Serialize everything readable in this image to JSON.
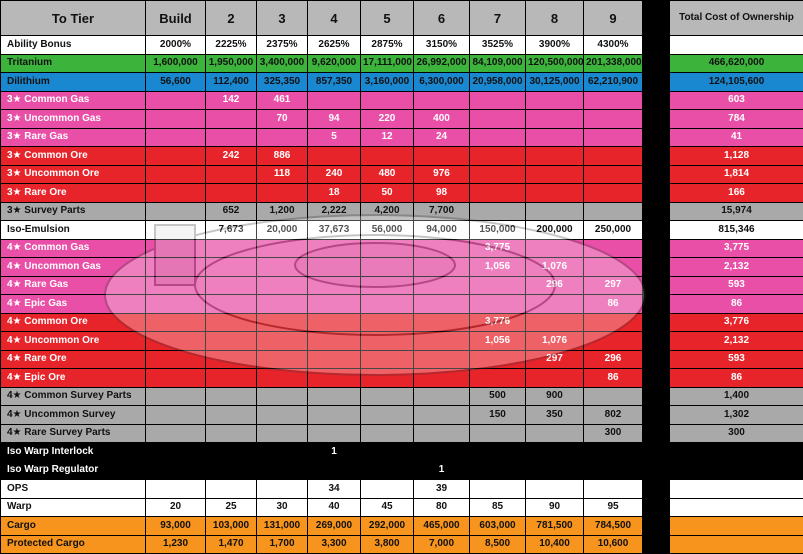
{
  "columns": [
    "To Tier",
    "Build",
    "2",
    "3",
    "4",
    "5",
    "6",
    "7",
    "8",
    "9",
    "",
    "Total Cost of Ownership"
  ],
  "rows": [
    {
      "color": "white",
      "cells": [
        "Ability Bonus",
        "2000%",
        "2225%",
        "2375%",
        "2625%",
        "2875%",
        "3150%",
        "3525%",
        "3900%",
        "4300%",
        ""
      ]
    },
    {
      "color": "green",
      "cells": [
        "Tritanium",
        "1,600,000",
        "1,950,000",
        "3,400,000",
        "9,620,000",
        "17,111,000",
        "26,992,000",
        "84,109,000",
        "120,500,000",
        "201,338,000",
        "466,620,000"
      ]
    },
    {
      "color": "blue",
      "cells": [
        "Dilithium",
        "56,600",
        "112,400",
        "325,350",
        "857,350",
        "3,160,000",
        "6,300,000",
        "20,958,000",
        "30,125,000",
        "62,210,900",
        "124,105,600"
      ]
    },
    {
      "color": "pink",
      "cells": [
        "3★ Common Gas",
        "",
        "142",
        "461",
        "",
        "",
        "",
        "",
        "",
        "",
        "603"
      ]
    },
    {
      "color": "pink",
      "cells": [
        "3★ Uncommon Gas",
        "",
        "",
        "70",
        "94",
        "220",
        "400",
        "",
        "",
        "",
        "784"
      ]
    },
    {
      "color": "pink",
      "cells": [
        "3★ Rare Gas",
        "",
        "",
        "",
        "5",
        "12",
        "24",
        "",
        "",
        "",
        "41"
      ]
    },
    {
      "color": "red",
      "cells": [
        "3★ Common Ore",
        "",
        "242",
        "886",
        "",
        "",
        "",
        "",
        "",
        "",
        "1,128"
      ]
    },
    {
      "color": "red",
      "cells": [
        "3★ Uncommon Ore",
        "",
        "",
        "118",
        "240",
        "480",
        "976",
        "",
        "",
        "",
        "1,814"
      ]
    },
    {
      "color": "red",
      "cells": [
        "3★ Rare Ore",
        "",
        "",
        "",
        "18",
        "50",
        "98",
        "",
        "",
        "",
        "166"
      ]
    },
    {
      "color": "gray",
      "cells": [
        "3★ Survey Parts",
        "",
        "652",
        "1,200",
        "2,222",
        "4,200",
        "7,700",
        "",
        "",
        "",
        "15,974"
      ]
    },
    {
      "color": "white",
      "cells": [
        "Iso-Emulsion",
        "",
        "7,673",
        "20,000",
        "37,673",
        "56,000",
        "94,000",
        "150,000",
        "200,000",
        "250,000",
        "815,346"
      ]
    },
    {
      "color": "pink",
      "cells": [
        "4★ Common Gas",
        "",
        "",
        "",
        "",
        "",
        "",
        "3,775",
        "",
        "",
        "3,775"
      ]
    },
    {
      "color": "pink",
      "cells": [
        "4★ Uncommon Gas",
        "",
        "",
        "",
        "",
        "",
        "",
        "1,056",
        "1,076",
        "",
        "2,132"
      ]
    },
    {
      "color": "pink",
      "cells": [
        "4★ Rare Gas",
        "",
        "",
        "",
        "",
        "",
        "",
        "",
        "296",
        "297",
        "593"
      ]
    },
    {
      "color": "pink",
      "cells": [
        "4★ Epic Gas",
        "",
        "",
        "",
        "",
        "",
        "",
        "",
        "",
        "86",
        "86"
      ]
    },
    {
      "color": "red",
      "cells": [
        "4★ Common Ore",
        "",
        "",
        "",
        "",
        "",
        "",
        "3,776",
        "",
        "",
        "3,776"
      ]
    },
    {
      "color": "red",
      "cells": [
        "4★ Uncommon Ore",
        "",
        "",
        "",
        "",
        "",
        "",
        "1,056",
        "1,076",
        "",
        "2,132"
      ]
    },
    {
      "color": "red",
      "cells": [
        "4★ Rare Ore",
        "",
        "",
        "",
        "",
        "",
        "",
        "",
        "297",
        "296",
        "593"
      ]
    },
    {
      "color": "red",
      "cells": [
        "4★ Epic Ore",
        "",
        "",
        "",
        "",
        "",
        "",
        "",
        "",
        "86",
        "86"
      ]
    },
    {
      "color": "gray",
      "cells": [
        "4★ Common Survey Parts",
        "",
        "",
        "",
        "",
        "",
        "",
        "500",
        "900",
        "",
        "1,400"
      ]
    },
    {
      "color": "gray",
      "cells": [
        "4★ Uncommon Survey",
        "",
        "",
        "",
        "",
        "",
        "",
        "150",
        "350",
        "802",
        "1,302"
      ]
    },
    {
      "color": "gray",
      "cells": [
        "4★ Rare Survey Parts",
        "",
        "",
        "",
        "",
        "",
        "",
        "",
        "",
        "300",
        "300"
      ]
    },
    {
      "color": "black",
      "cells": [
        "Iso Warp Interlock",
        "",
        "",
        "",
        "1",
        "",
        "",
        "",
        "",
        "",
        ""
      ]
    },
    {
      "color": "black",
      "cells": [
        "Iso Warp Regulator",
        "",
        "",
        "",
        "",
        "",
        "1",
        "",
        "",
        "",
        ""
      ]
    },
    {
      "color": "white",
      "cells": [
        "OPS",
        "",
        "",
        "",
        "34",
        "",
        "39",
        "",
        "",
        "",
        ""
      ]
    },
    {
      "color": "white",
      "cells": [
        "Warp",
        "20",
        "25",
        "30",
        "40",
        "45",
        "80",
        "85",
        "90",
        "95",
        ""
      ]
    },
    {
      "color": "orange",
      "cells": [
        "Cargo",
        "93,000",
        "103,000",
        "131,000",
        "269,000",
        "292,000",
        "465,000",
        "603,000",
        "781,500",
        "784,500",
        ""
      ]
    },
    {
      "color": "orange",
      "cells": [
        "Protected Cargo",
        "1,230",
        "1,470",
        "1,700",
        "3,300",
        "3,800",
        "7,000",
        "8,500",
        "10,400",
        "10,600",
        ""
      ]
    }
  ],
  "colors": {
    "white": "#ffffff",
    "black": "#000000",
    "green": "#3cb43c",
    "blue": "#1a88d0",
    "pink": "#e94fa6",
    "red": "#e8242b",
    "gray": "#a9a9a9",
    "orange": "#f7941d"
  },
  "watermark": {
    "icon": "starship-saucer-icon"
  }
}
